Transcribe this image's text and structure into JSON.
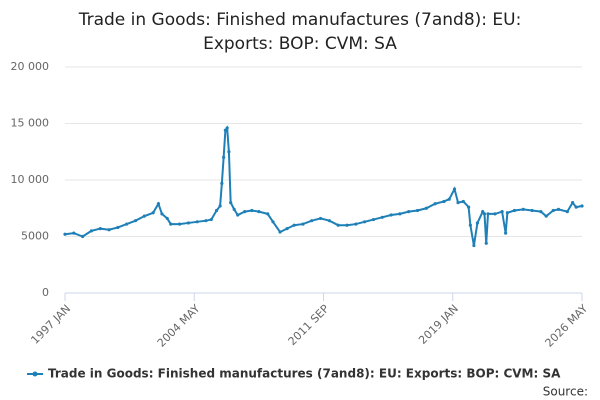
{
  "chart_data": {
    "type": "line",
    "title": [
      "Trade in Goods: Finished manufactures (7and8): EU:",
      "Exports: BOP: CVM: SA"
    ],
    "source": "Source:",
    "x": [
      1997.0,
      1997.5,
      1998.0,
      1998.5,
      1999.0,
      1999.5,
      2000.0,
      2000.5,
      2001.0,
      2001.5,
      2002.0,
      2002.3,
      2002.5,
      2002.8,
      2003.0,
      2003.5,
      2004.0,
      2004.5,
      2005.0,
      2005.3,
      2005.6,
      2005.8,
      2005.9,
      2006.0,
      2006.1,
      2006.2,
      2006.3,
      2006.4,
      2006.6,
      2006.8,
      2007.2,
      2007.6,
      2008.0,
      2008.5,
      2008.8,
      2009.2,
      2009.6,
      2010.0,
      2010.5,
      2011.0,
      2011.5,
      2012.0,
      2012.5,
      2013.0,
      2013.5,
      2014.0,
      2014.5,
      2015.0,
      2015.5,
      2016.0,
      2016.5,
      2017.0,
      2017.5,
      2018.0,
      2018.5,
      2018.8,
      2019.1,
      2019.3,
      2019.6,
      2019.9,
      2020.0,
      2020.2,
      2020.4,
      2020.7,
      2020.8,
      2020.9,
      2021.0,
      2021.4,
      2021.8,
      2022.0,
      2022.1,
      2022.5,
      2023.0,
      2023.5,
      2024.0,
      2024.3,
      2024.7,
      2025.0,
      2025.5,
      2025.8,
      2026.0,
      2026.333
    ],
    "series": [
      {
        "name": "Trade in Goods: Finished manufactures (7and8): EU: Exports: BOP: CVM: SA",
        "color": "#1f80b8",
        "values": [
          5200,
          5300,
          5000,
          5500,
          5700,
          5600,
          5800,
          6100,
          6400,
          6800,
          7100,
          7900,
          7000,
          6600,
          6100,
          6100,
          6200,
          6300,
          6400,
          6500,
          7300,
          7700,
          9700,
          12000,
          14400,
          14600,
          12500,
          8000,
          7400,
          6900,
          7200,
          7300,
          7200,
          7000,
          6300,
          5400,
          5700,
          6000,
          6100,
          6400,
          6600,
          6400,
          6000,
          6000,
          6100,
          6300,
          6500,
          6700,
          6900,
          7000,
          7200,
          7300,
          7500,
          7900,
          8100,
          8300,
          9200,
          8000,
          8100,
          7600,
          6000,
          4200,
          6200,
          7200,
          7000,
          4400,
          7000,
          7000,
          7200,
          5300,
          7100,
          7300,
          7400,
          7300,
          7200,
          6800,
          7300,
          7400,
          7200,
          8000,
          7600,
          7700
        ]
      }
    ],
    "xlim": [
      1997.0,
      2026.333
    ],
    "xticks": [
      {
        "value": 1997.0,
        "label": "1997 JAN"
      },
      {
        "value": 2004.333,
        "label": "2004 MAY"
      },
      {
        "value": 2011.667,
        "label": "2011 SEP"
      },
      {
        "value": 2019.0,
        "label": "2019 JAN"
      },
      {
        "value": 2026.333,
        "label": "2026 MAY"
      }
    ],
    "ylim": [
      0,
      20000
    ],
    "yticks": [
      0,
      5000,
      {
        "value": 10000,
        "label": "10 000"
      },
      {
        "value": 15000,
        "label": "15 000"
      },
      {
        "value": 20000,
        "label": "20 000"
      }
    ],
    "grid": true
  }
}
